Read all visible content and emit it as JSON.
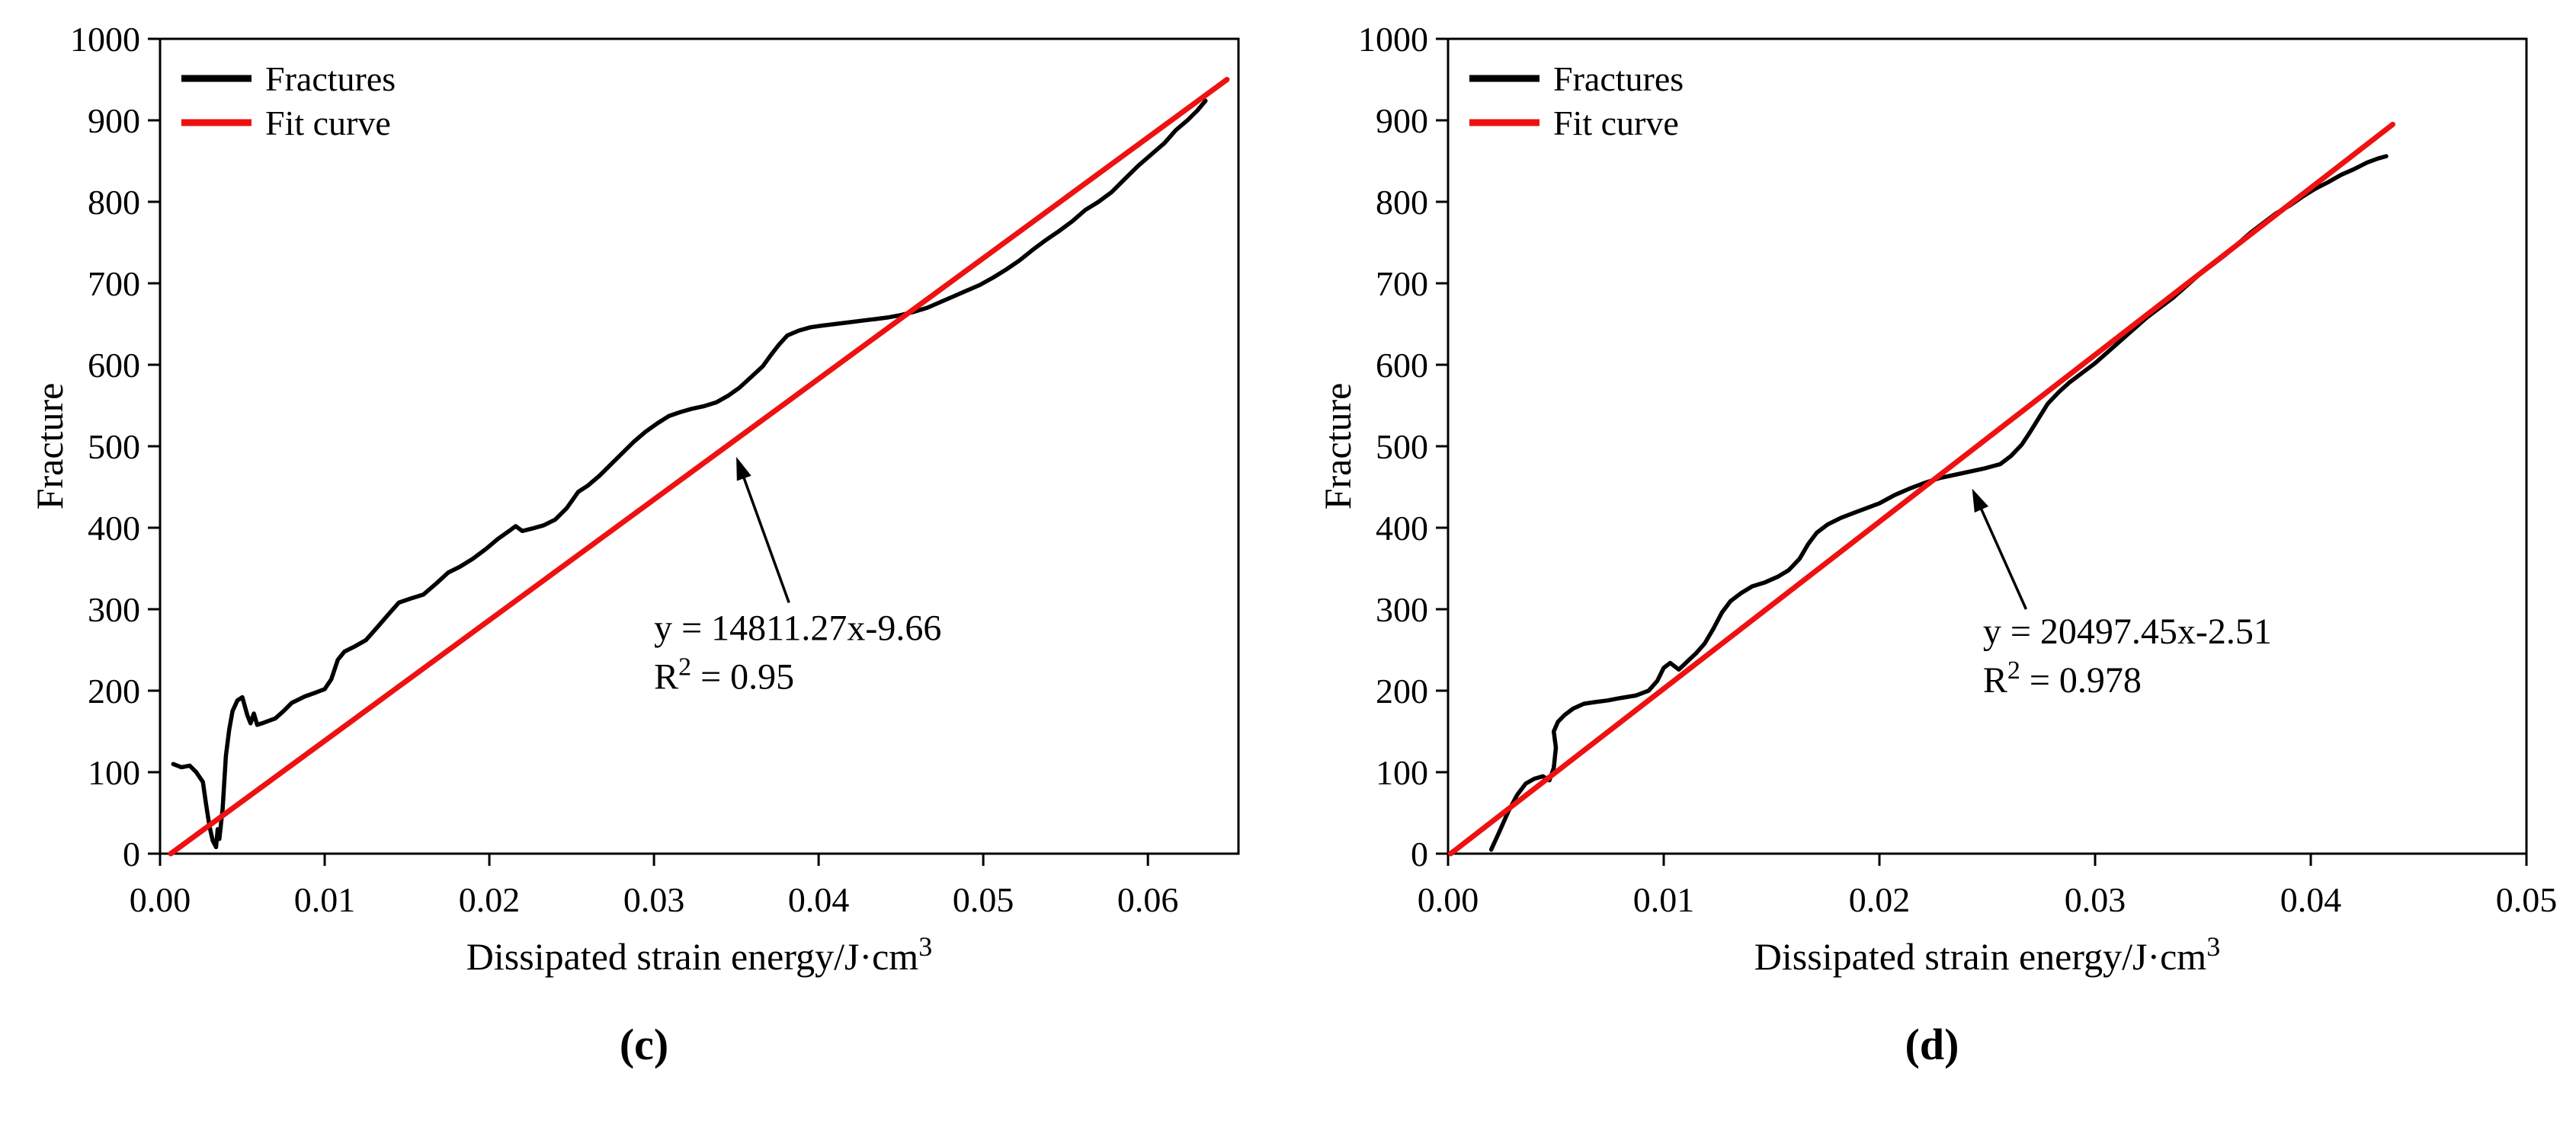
{
  "page": {
    "background": "#ffffff"
  },
  "chart_data": [
    {
      "type": "line",
      "caption": "(c)",
      "xlabel": {
        "text": "Dissipated strain energy/J·cm",
        "sup": "3"
      },
      "ylabel": "Fracture",
      "xlim": [
        0,
        0.0655
      ],
      "ylim": [
        0,
        1000
      ],
      "xticks": [
        {
          "v": 0.0,
          "label": "0.00"
        },
        {
          "v": 0.01,
          "label": "0.01"
        },
        {
          "v": 0.02,
          "label": "0.02"
        },
        {
          "v": 0.03,
          "label": "0.03"
        },
        {
          "v": 0.04,
          "label": "0.04"
        },
        {
          "v": 0.05,
          "label": "0.05"
        },
        {
          "v": 0.06,
          "label": "0.06"
        }
      ],
      "yticks": [
        {
          "v": 0,
          "label": "0"
        },
        {
          "v": 100,
          "label": "100"
        },
        {
          "v": 200,
          "label": "200"
        },
        {
          "v": 300,
          "label": "300"
        },
        {
          "v": 400,
          "label": "400"
        },
        {
          "v": 500,
          "label": "500"
        },
        {
          "v": 600,
          "label": "600"
        },
        {
          "v": 700,
          "label": "700"
        },
        {
          "v": 800,
          "label": "800"
        },
        {
          "v": 900,
          "label": "900"
        },
        {
          "v": 1000,
          "label": "1000"
        }
      ],
      "legend": [
        {
          "label": "Fractures",
          "color": "#000000"
        },
        {
          "label": "Fit curve",
          "color": "#ee1111"
        }
      ],
      "fit": {
        "equation": "y = 14811.27x-9.66",
        "r2_value": "0.95",
        "x0": 0.00065,
        "y0": 0,
        "x1": 0.0648,
        "y1": 950,
        "color": "#ee1111"
      },
      "annotation": {
        "text_x": 0.03,
        "text_y": 262,
        "arrow_tail": [
          0.0382,
          308
        ],
        "arrow_head": [
          0.035,
          487
        ]
      },
      "series": [
        {
          "name": "Fractures",
          "color": "#000000",
          "points": [
            [
              0.0008,
              110
            ],
            [
              0.0013,
              106
            ],
            [
              0.0018,
              108
            ],
            [
              0.0022,
              100
            ],
            [
              0.0026,
              88
            ],
            [
              0.0028,
              60
            ],
            [
              0.003,
              34
            ],
            [
              0.0032,
              16
            ],
            [
              0.0034,
              8
            ],
            [
              0.0035,
              30
            ],
            [
              0.0036,
              18
            ],
            [
              0.0038,
              55
            ],
            [
              0.004,
              120
            ],
            [
              0.0042,
              152
            ],
            [
              0.0044,
              175
            ],
            [
              0.0047,
              188
            ],
            [
              0.005,
              192
            ],
            [
              0.0053,
              170
            ],
            [
              0.0055,
              160
            ],
            [
              0.0057,
              172
            ],
            [
              0.0059,
              158
            ],
            [
              0.0062,
              160
            ],
            [
              0.0066,
              163
            ],
            [
              0.007,
              166
            ],
            [
              0.0075,
              175
            ],
            [
              0.008,
              185
            ],
            [
              0.0088,
              193
            ],
            [
              0.0095,
              198
            ],
            [
              0.01,
              202
            ],
            [
              0.0104,
              214
            ],
            [
              0.0108,
              238
            ],
            [
              0.0112,
              248
            ],
            [
              0.0118,
              254
            ],
            [
              0.0125,
              262
            ],
            [
              0.0132,
              278
            ],
            [
              0.0138,
              292
            ],
            [
              0.0145,
              308
            ],
            [
              0.0152,
              313
            ],
            [
              0.016,
              318
            ],
            [
              0.0168,
              332
            ],
            [
              0.0175,
              345
            ],
            [
              0.0182,
              352
            ],
            [
              0.019,
              362
            ],
            [
              0.0198,
              374
            ],
            [
              0.0205,
              386
            ],
            [
              0.0212,
              396
            ],
            [
              0.0216,
              402
            ],
            [
              0.022,
              396
            ],
            [
              0.0226,
              399
            ],
            [
              0.0233,
              403
            ],
            [
              0.024,
              410
            ],
            [
              0.0247,
              424
            ],
            [
              0.0254,
              444
            ],
            [
              0.026,
              452
            ],
            [
              0.0267,
              464
            ],
            [
              0.0274,
              478
            ],
            [
              0.0281,
              492
            ],
            [
              0.0288,
              506
            ],
            [
              0.0295,
              518
            ],
            [
              0.0302,
              528
            ],
            [
              0.0309,
              537
            ],
            [
              0.0316,
              542
            ],
            [
              0.0323,
              546
            ],
            [
              0.033,
              549
            ],
            [
              0.0338,
              554
            ],
            [
              0.0345,
              562
            ],
            [
              0.0352,
              572
            ],
            [
              0.0359,
              585
            ],
            [
              0.0366,
              598
            ],
            [
              0.0371,
              612
            ],
            [
              0.0376,
              625
            ],
            [
              0.0381,
              636
            ],
            [
              0.0388,
              642
            ],
            [
              0.0395,
              646
            ],
            [
              0.0402,
              648
            ],
            [
              0.041,
              650
            ],
            [
              0.0418,
              652
            ],
            [
              0.0426,
              654
            ],
            [
              0.0434,
              656
            ],
            [
              0.0442,
              658
            ],
            [
              0.045,
              661
            ],
            [
              0.0458,
              665
            ],
            [
              0.0466,
              670
            ],
            [
              0.0474,
              677
            ],
            [
              0.0482,
              684
            ],
            [
              0.049,
              691
            ],
            [
              0.0498,
              698
            ],
            [
              0.0506,
              707
            ],
            [
              0.0514,
              717
            ],
            [
              0.0522,
              728
            ],
            [
              0.053,
              741
            ],
            [
              0.0538,
              753
            ],
            [
              0.0546,
              764
            ],
            [
              0.0554,
              776
            ],
            [
              0.0562,
              790
            ],
            [
              0.057,
              800
            ],
            [
              0.0578,
              812
            ],
            [
              0.0586,
              828
            ],
            [
              0.0594,
              844
            ],
            [
              0.0602,
              858
            ],
            [
              0.061,
              872
            ],
            [
              0.0617,
              888
            ],
            [
              0.0624,
              900
            ],
            [
              0.063,
              912
            ],
            [
              0.0635,
              924
            ]
          ]
        }
      ]
    },
    {
      "type": "line",
      "caption": "(d)",
      "xlabel": {
        "text": "Dissipated strain energy/J·cm",
        "sup": "3"
      },
      "ylabel": "Fracture",
      "xlim": [
        0,
        0.05
      ],
      "ylim": [
        0,
        1000
      ],
      "xticks": [
        {
          "v": 0.0,
          "label": "0.00"
        },
        {
          "v": 0.01,
          "label": "0.01"
        },
        {
          "v": 0.02,
          "label": "0.02"
        },
        {
          "v": 0.03,
          "label": "0.03"
        },
        {
          "v": 0.04,
          "label": "0.04"
        },
        {
          "v": 0.05,
          "label": "0.05"
        }
      ],
      "yticks": [
        {
          "v": 0,
          "label": "0"
        },
        {
          "v": 100,
          "label": "100"
        },
        {
          "v": 200,
          "label": "200"
        },
        {
          "v": 300,
          "label": "300"
        },
        {
          "v": 400,
          "label": "400"
        },
        {
          "v": 500,
          "label": "500"
        },
        {
          "v": 600,
          "label": "600"
        },
        {
          "v": 700,
          "label": "700"
        },
        {
          "v": 800,
          "label": "800"
        },
        {
          "v": 900,
          "label": "900"
        },
        {
          "v": 1000,
          "label": "1000"
        }
      ],
      "legend": [
        {
          "label": "Fractures",
          "color": "#000000"
        },
        {
          "label": "Fit curve",
          "color": "#ee1111"
        }
      ],
      "fit": {
        "equation": "y = 20497.45x-2.51",
        "r2_value": "0.978",
        "x0": 0.00012,
        "y0": 0,
        "x1": 0.0438,
        "y1": 895,
        "color": "#ee1111"
      },
      "annotation": {
        "text_x": 0.0248,
        "text_y": 258,
        "arrow_tail": [
          0.0268,
          300
        ],
        "arrow_head": [
          0.0243,
          448
        ]
      },
      "series": [
        {
          "name": "Fractures",
          "color": "#000000",
          "points": [
            [
              0.002,
              5
            ],
            [
              0.0024,
              28
            ],
            [
              0.0028,
              52
            ],
            [
              0.0032,
              72
            ],
            [
              0.0036,
              86
            ],
            [
              0.004,
              92
            ],
            [
              0.0044,
              95
            ],
            [
              0.0047,
              90
            ],
            [
              0.0049,
              105
            ],
            [
              0.005,
              130
            ],
            [
              0.0049,
              150
            ],
            [
              0.0051,
              162
            ],
            [
              0.0054,
              170
            ],
            [
              0.0058,
              178
            ],
            [
              0.0063,
              184
            ],
            [
              0.0068,
              186
            ],
            [
              0.0074,
              188
            ],
            [
              0.008,
              191
            ],
            [
              0.0087,
              194
            ],
            [
              0.0093,
              200
            ],
            [
              0.0097,
              212
            ],
            [
              0.01,
              228
            ],
            [
              0.0103,
              234
            ],
            [
              0.0107,
              226
            ],
            [
              0.0111,
              236
            ],
            [
              0.0115,
              246
            ],
            [
              0.0119,
              258
            ],
            [
              0.0123,
              276
            ],
            [
              0.0127,
              296
            ],
            [
              0.0131,
              310
            ],
            [
              0.0136,
              320
            ],
            [
              0.0141,
              328
            ],
            [
              0.0147,
              333
            ],
            [
              0.0153,
              340
            ],
            [
              0.0158,
              348
            ],
            [
              0.0163,
              362
            ],
            [
              0.0167,
              380
            ],
            [
              0.0171,
              394
            ],
            [
              0.0176,
              404
            ],
            [
              0.0182,
              412
            ],
            [
              0.0188,
              418
            ],
            [
              0.0194,
              424
            ],
            [
              0.02,
              430
            ],
            [
              0.0207,
              440
            ],
            [
              0.0214,
              448
            ],
            [
              0.0221,
              455
            ],
            [
              0.0228,
              461
            ],
            [
              0.0235,
              465
            ],
            [
              0.0242,
              469
            ],
            [
              0.0249,
              473
            ],
            [
              0.0256,
              478
            ],
            [
              0.0261,
              488
            ],
            [
              0.0266,
              502
            ],
            [
              0.027,
              518
            ],
            [
              0.0274,
              535
            ],
            [
              0.0278,
              552
            ],
            [
              0.0283,
              566
            ],
            [
              0.0288,
              578
            ],
            [
              0.0294,
              590
            ],
            [
              0.03,
              602
            ],
            [
              0.0306,
              616
            ],
            [
              0.0312,
              630
            ],
            [
              0.0318,
              644
            ],
            [
              0.0324,
              658
            ],
            [
              0.033,
              670
            ],
            [
              0.0336,
              682
            ],
            [
              0.0342,
              696
            ],
            [
              0.0348,
              710
            ],
            [
              0.0354,
              722
            ],
            [
              0.036,
              734
            ],
            [
              0.0366,
              748
            ],
            [
              0.0372,
              762
            ],
            [
              0.0378,
              774
            ],
            [
              0.0384,
              786
            ],
            [
              0.039,
              795
            ],
            [
              0.0396,
              806
            ],
            [
              0.0402,
              816
            ],
            [
              0.0408,
              824
            ],
            [
              0.0414,
              833
            ],
            [
              0.042,
              840
            ],
            [
              0.0426,
              848
            ],
            [
              0.0431,
              853
            ],
            [
              0.0435,
              856
            ]
          ]
        }
      ]
    }
  ]
}
